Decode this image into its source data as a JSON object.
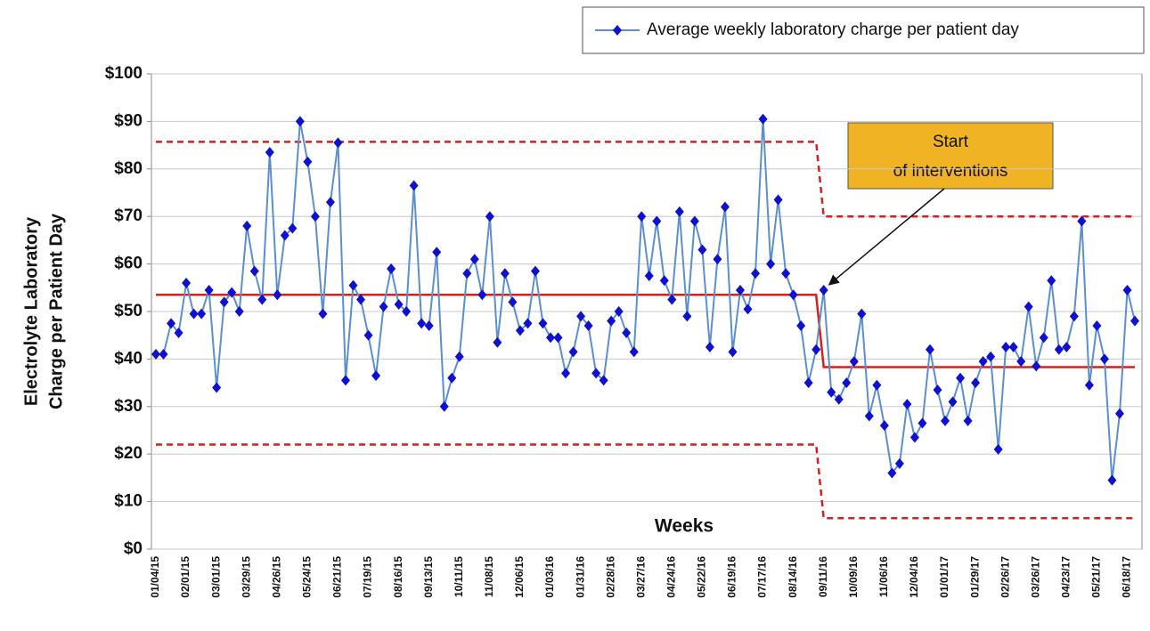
{
  "chart_data": {
    "type": "line",
    "xlabel": "Weeks",
    "ylabel": [
      "Electrolyte Laboratory",
      "Charge per Patient Day"
    ],
    "annotation": {
      "lines": [
        "Start",
        "of interventions"
      ],
      "color": "#f0b323",
      "target": 88
    },
    "legend": "upper right",
    "grid": true,
    "ylim": [
      0,
      100
    ],
    "yticks": [
      {
        "value": 0,
        "label": "$0"
      },
      {
        "value": 10,
        "label": "$10"
      },
      {
        "value": 20,
        "label": "$20"
      },
      {
        "value": 30,
        "label": "$30"
      },
      {
        "value": 40,
        "label": "$40"
      },
      {
        "value": 50,
        "label": "$50"
      },
      {
        "value": 60,
        "label": "$60"
      },
      {
        "value": 70,
        "label": "$70"
      },
      {
        "value": 80,
        "label": "$80"
      },
      {
        "value": 90,
        "label": "$90"
      },
      {
        "value": 100,
        "label": "$100"
      }
    ],
    "categories": [
      "01/04/15",
      null,
      null,
      null,
      "02/01/15",
      null,
      null,
      null,
      "03/01/15",
      null,
      null,
      null,
      "03/29/15",
      null,
      null,
      null,
      "04/26/15",
      null,
      null,
      null,
      "05/24/15",
      null,
      null,
      null,
      "06/21/15",
      null,
      null,
      null,
      "07/19/15",
      null,
      null,
      null,
      "08/16/15",
      null,
      null,
      null,
      "09/13/15",
      null,
      null,
      null,
      "10/11/15",
      null,
      null,
      null,
      "11/08/15",
      null,
      null,
      null,
      "12/06/15",
      null,
      null,
      null,
      "01/03/16",
      null,
      null,
      null,
      "01/31/16",
      null,
      null,
      null,
      "02/28/16",
      null,
      null,
      null,
      "03/27/16",
      null,
      null,
      null,
      "04/24/16",
      null,
      null,
      null,
      "05/22/16",
      null,
      null,
      null,
      "06/19/16",
      null,
      null,
      null,
      "07/17/16",
      null,
      null,
      null,
      "08/14/16",
      null,
      null,
      null,
      "09/11/16",
      null,
      null,
      null,
      "10/09/16",
      null,
      null,
      null,
      "11/06/16",
      null,
      null,
      null,
      "12/04/16",
      null,
      null,
      null,
      "01/01/17",
      null,
      null,
      null,
      "01/29/17",
      null,
      null,
      null,
      "02/26/17",
      null,
      null,
      null,
      "03/26/17",
      null,
      null,
      null,
      "04/23/17",
      null,
      null,
      null,
      "05/21/17",
      null,
      null,
      null,
      "06/18/17",
      null
    ],
    "series": [
      {
        "name": "Average weekly laboratory charge per patient day",
        "color": "#5b8fd0",
        "marker": "diamond",
        "marker_color": "#1010d0",
        "values": [
          41,
          41,
          47.5,
          45.5,
          56,
          49.5,
          49.5,
          54.5,
          34,
          52,
          54,
          50,
          68,
          58.5,
          52.5,
          83.5,
          53.5,
          66,
          67.5,
          90,
          81.5,
          70,
          49.5,
          73,
          85.5,
          35.5,
          55.5,
          52.5,
          45,
          36.5,
          51,
          59,
          51.5,
          50,
          76.5,
          47.5,
          47,
          62.5,
          30,
          36,
          40.5,
          58,
          61,
          53.5,
          70,
          43.5,
          58,
          52,
          46,
          47.5,
          58.5,
          47.5,
          44.5,
          44.5,
          37,
          41.5,
          49,
          47,
          37,
          35.5,
          48,
          50,
          45.5,
          41.5,
          70,
          57.5,
          69,
          56.5,
          52.5,
          71,
          49,
          69,
          63,
          42.5,
          61,
          72,
          41.5,
          54.5,
          50.5,
          58,
          90.5,
          60,
          73.5,
          58,
          53.5,
          47,
          35,
          42,
          54.5,
          33,
          31.5,
          35,
          39.5,
          49.5,
          28,
          34.5,
          26,
          16,
          18,
          30.5,
          23.5,
          26.5,
          42,
          33.5,
          27,
          31,
          36,
          27,
          35,
          39.5,
          40.5,
          21,
          42.5,
          42.5,
          39.5,
          51,
          38.5,
          44.5,
          56.5,
          42,
          42.5,
          49,
          69,
          34.5,
          47,
          40,
          14.5,
          28.5,
          54.5,
          48
        ]
      },
      {
        "color": "#d42020",
        "dashed": false,
        "values": [
          53.5,
          53.5,
          53.5,
          53.5,
          53.5,
          53.5,
          53.5,
          53.5,
          53.5,
          53.5,
          53.5,
          53.5,
          53.5,
          53.5,
          53.5,
          53.5,
          53.5,
          53.5,
          53.5,
          53.5,
          53.5,
          53.5,
          53.5,
          53.5,
          53.5,
          53.5,
          53.5,
          53.5,
          53.5,
          53.5,
          53.5,
          53.5,
          53.5,
          53.5,
          53.5,
          53.5,
          53.5,
          53.5,
          53.5,
          53.5,
          53.5,
          53.5,
          53.5,
          53.5,
          53.5,
          53.5,
          53.5,
          53.5,
          53.5,
          53.5,
          53.5,
          53.5,
          53.5,
          53.5,
          53.5,
          53.5,
          53.5,
          53.5,
          53.5,
          53.5,
          53.5,
          53.5,
          53.5,
          53.5,
          53.5,
          53.5,
          53.5,
          53.5,
          53.5,
          53.5,
          53.5,
          53.5,
          53.5,
          53.5,
          53.5,
          53.5,
          53.5,
          53.5,
          53.5,
          53.5,
          53.5,
          53.5,
          53.5,
          53.5,
          53.5,
          53.5,
          53.5,
          53.5,
          38.3,
          38.3,
          38.3,
          38.3,
          38.3,
          38.3,
          38.3,
          38.3,
          38.3,
          38.3,
          38.3,
          38.3,
          38.3,
          38.3,
          38.3,
          38.3,
          38.3,
          38.3,
          38.3,
          38.3,
          38.3,
          38.3,
          38.3,
          38.3,
          38.3,
          38.3,
          38.3,
          38.3,
          38.3,
          38.3,
          38.3,
          38.3,
          38.3,
          38.3,
          38.3,
          38.3,
          38.3,
          38.3,
          38.3,
          38.3,
          38.3,
          38.3
        ]
      },
      {
        "color": "#d42020",
        "dashed": true,
        "values": [
          85.7,
          85.7,
          85.7,
          85.7,
          85.7,
          85.7,
          85.7,
          85.7,
          85.7,
          85.7,
          85.7,
          85.7,
          85.7,
          85.7,
          85.7,
          85.7,
          85.7,
          85.7,
          85.7,
          85.7,
          85.7,
          85.7,
          85.7,
          85.7,
          85.7,
          85.7,
          85.7,
          85.7,
          85.7,
          85.7,
          85.7,
          85.7,
          85.7,
          85.7,
          85.7,
          85.7,
          85.7,
          85.7,
          85.7,
          85.7,
          85.7,
          85.7,
          85.7,
          85.7,
          85.7,
          85.7,
          85.7,
          85.7,
          85.7,
          85.7,
          85.7,
          85.7,
          85.7,
          85.7,
          85.7,
          85.7,
          85.7,
          85.7,
          85.7,
          85.7,
          85.7,
          85.7,
          85.7,
          85.7,
          85.7,
          85.7,
          85.7,
          85.7,
          85.7,
          85.7,
          85.7,
          85.7,
          85.7,
          85.7,
          85.7,
          85.7,
          85.7,
          85.7,
          85.7,
          85.7,
          85.7,
          85.7,
          85.7,
          85.7,
          85.7,
          85.7,
          85.7,
          85.7,
          70,
          70,
          70,
          70,
          70,
          70,
          70,
          70,
          70,
          70,
          70,
          70,
          70,
          70,
          70,
          70,
          70,
          70,
          70,
          70,
          70,
          70,
          70,
          70,
          70,
          70,
          70,
          70,
          70,
          70,
          70,
          70,
          70,
          70,
          70,
          70,
          70,
          70,
          70,
          70,
          70,
          70
        ]
      },
      {
        "color": "#d42020",
        "dashed": true,
        "values": [
          22,
          22,
          22,
          22,
          22,
          22,
          22,
          22,
          22,
          22,
          22,
          22,
          22,
          22,
          22,
          22,
          22,
          22,
          22,
          22,
          22,
          22,
          22,
          22,
          22,
          22,
          22,
          22,
          22,
          22,
          22,
          22,
          22,
          22,
          22,
          22,
          22,
          22,
          22,
          22,
          22,
          22,
          22,
          22,
          22,
          22,
          22,
          22,
          22,
          22,
          22,
          22,
          22,
          22,
          22,
          22,
          22,
          22,
          22,
          22,
          22,
          22,
          22,
          22,
          22,
          22,
          22,
          22,
          22,
          22,
          22,
          22,
          22,
          22,
          22,
          22,
          22,
          22,
          22,
          22,
          22,
          22,
          22,
          22,
          22,
          22,
          22,
          22,
          6.5,
          6.5,
          6.5,
          6.5,
          6.5,
          6.5,
          6.5,
          6.5,
          6.5,
          6.5,
          6.5,
          6.5,
          6.5,
          6.5,
          6.5,
          6.5,
          6.5,
          6.5,
          6.5,
          6.5,
          6.5,
          6.5,
          6.5,
          6.5,
          6.5,
          6.5,
          6.5,
          6.5,
          6.5,
          6.5,
          6.5,
          6.5,
          6.5,
          6.5,
          6.5,
          6.5,
          6.5,
          6.5,
          6.5,
          6.5,
          6.5,
          6.5
        ]
      }
    ]
  }
}
